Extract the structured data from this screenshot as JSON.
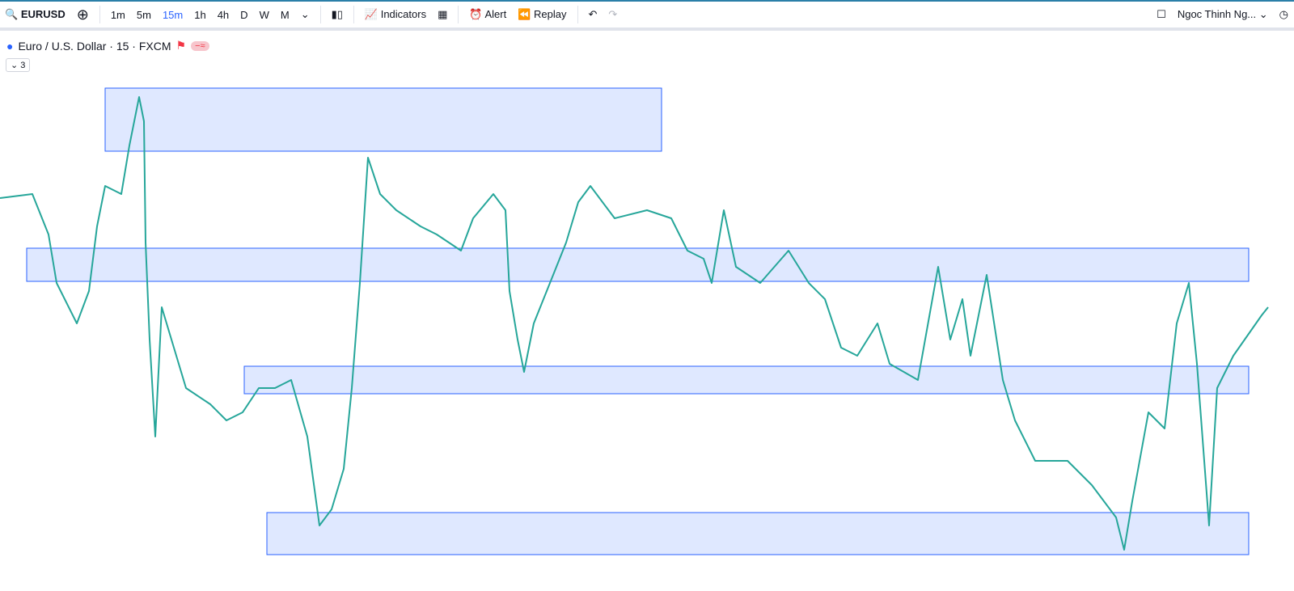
{
  "toolbar": {
    "symbol": "EURUSD",
    "intervals": [
      "1m",
      "5m",
      "15m",
      "1h",
      "4h",
      "D",
      "W",
      "M"
    ],
    "active_interval": "15m",
    "indicators": "Indicators",
    "alert": "Alert",
    "replay": "Replay",
    "user": "Ngoc Thinh Ng..."
  },
  "legend": {
    "title": "Euro / U.S. Dollar · 15 · FXCM",
    "collapsed_count": 3
  }
}
